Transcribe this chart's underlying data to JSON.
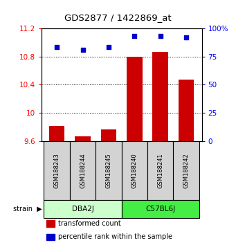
{
  "title": "GDS2877 / 1422869_at",
  "samples": [
    "GSM188243",
    "GSM188244",
    "GSM188245",
    "GSM188240",
    "GSM188241",
    "GSM188242"
  ],
  "groups": [
    {
      "name": "DBA2J",
      "indices": [
        0,
        1,
        2
      ],
      "color": "#ccffcc"
    },
    {
      "name": "C57BL6J",
      "indices": [
        3,
        4,
        5
      ],
      "color": "#44ee44"
    }
  ],
  "transformed_counts": [
    9.82,
    9.67,
    9.77,
    10.8,
    10.86,
    10.47
  ],
  "percentile_ranks": [
    83,
    81,
    83,
    93,
    93,
    92
  ],
  "ylim_left": [
    9.6,
    11.2
  ],
  "ylim_right": [
    0,
    100
  ],
  "yticks_left": [
    9.6,
    10.0,
    10.4,
    10.8,
    11.2
  ],
  "yticks_right": [
    0,
    25,
    50,
    75,
    100
  ],
  "ytick_labels_left": [
    "9.6",
    "10",
    "10.4",
    "10.8",
    "11.2"
  ],
  "ytick_labels_right": [
    "0",
    "25",
    "50",
    "75",
    "100%"
  ],
  "bar_color": "#cc0000",
  "dot_color": "#0000cc",
  "bar_bottom": 9.6,
  "bar_width": 0.6,
  "background_color": "#ffffff",
  "sample_box_color": "#d3d3d3",
  "legend_items": [
    "transformed count",
    "percentile rank within the sample"
  ],
  "legend_colors": [
    "#cc0000",
    "#0000cc"
  ]
}
